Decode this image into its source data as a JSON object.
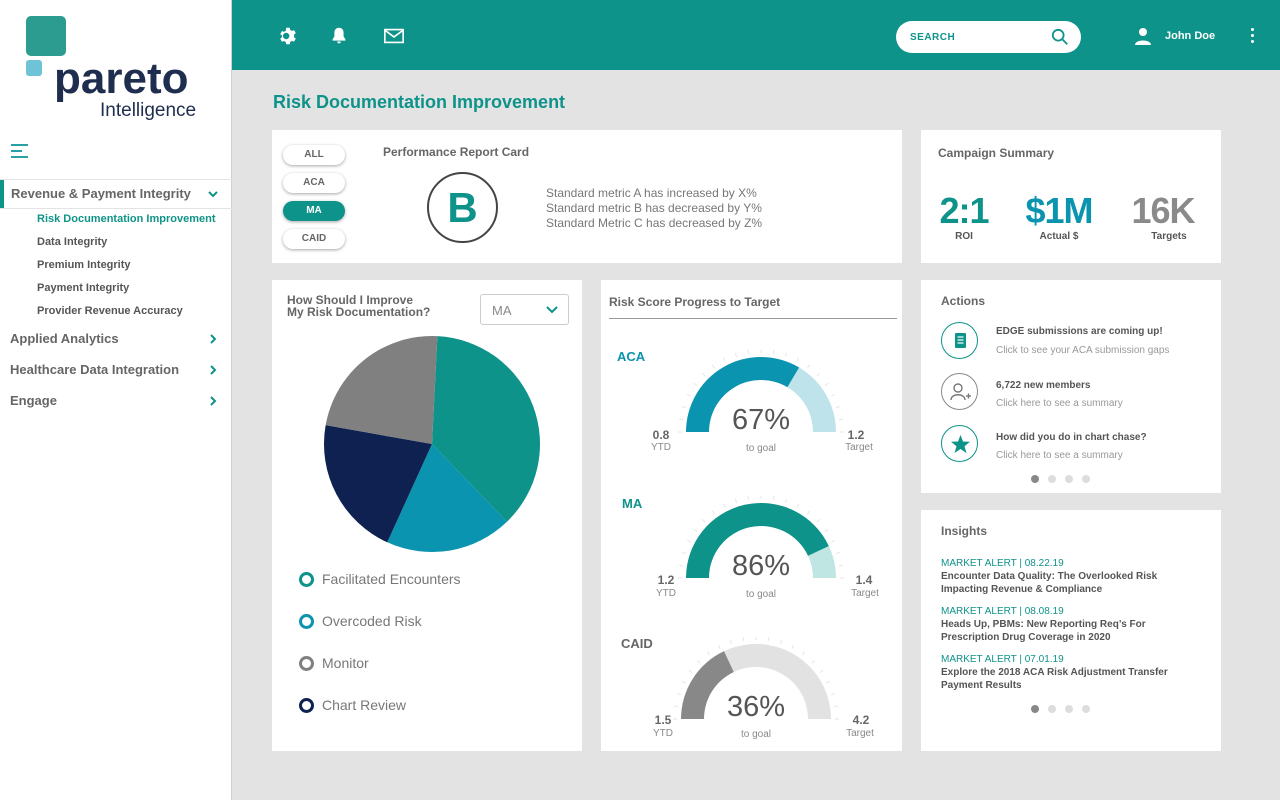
{
  "brand": {
    "name": "pareto",
    "sub": "Intelligence"
  },
  "header": {
    "search_placeholder": "SEARCH",
    "user_name": "John Doe"
  },
  "sidebar": {
    "sections": [
      {
        "label": "Revenue & Payment Integrity"
      },
      {
        "label": "Applied Analytics"
      },
      {
        "label": "Healthcare Data Integration"
      },
      {
        "label": "Engage"
      }
    ],
    "sub_items": [
      {
        "label": "Risk Documentation Improvement"
      },
      {
        "label": "Data Integrity"
      },
      {
        "label": "Premium Integrity"
      },
      {
        "label": "Payment Integrity"
      },
      {
        "label": "Provider Revenue Accuracy"
      }
    ]
  },
  "page": {
    "title": "Risk Documentation Improvement"
  },
  "report_card": {
    "filters": [
      "ALL",
      "ACA",
      "MA",
      "CAID"
    ],
    "active_filter": "MA",
    "title": "Performance Report Card",
    "grade": "B",
    "metrics": [
      "Standard metric A has increased by X%",
      "Standard metric B has decreased by Y%",
      "Standard Metric C has decreased by Z%"
    ]
  },
  "campaign": {
    "title": "Campaign Summary",
    "kpis": [
      {
        "value": "2:1",
        "label": "ROI",
        "color": "#0e938a"
      },
      {
        "value": "$1M",
        "label": "Actual $",
        "color": "#0a94b0"
      },
      {
        "value": "16K",
        "label": "Targets",
        "color": "#8a8a8a"
      }
    ]
  },
  "improve": {
    "title_line1": "How Should I Improve",
    "title_line2": "My Risk Documentation?",
    "select_value": "MA",
    "legend": [
      {
        "label": "Facilitated Encounters",
        "color": "#0e938a"
      },
      {
        "label": "Overcoded Risk",
        "color": "#0a94b0"
      },
      {
        "label": "Monitor",
        "color": "#808080"
      },
      {
        "label": "Chart Review",
        "color": "#0e2150"
      }
    ]
  },
  "chart_data": {
    "type": "pie",
    "slices": [
      {
        "label": "Facilitated Encounters",
        "value": 37,
        "color": "#0e938a"
      },
      {
        "label": "Overcoded Risk",
        "value": 19,
        "color": "#0a94b0"
      },
      {
        "label": "Chart Review",
        "value": 21,
        "color": "#0e2150"
      },
      {
        "label": "Monitor",
        "value": 23,
        "color": "#808080"
      }
    ]
  },
  "progress": {
    "title": "Risk Score Progress to Target",
    "ytd_label": "YTD",
    "target_label": "Target",
    "to_goal_label": "to goal",
    "gauges": [
      {
        "name": "ACA",
        "name_color": "#0a94b0",
        "ytd": "0.8",
        "target": "1.2",
        "pct": "67%",
        "fraction": 0.67,
        "fill": "#0a94b0",
        "rest": "#bfe3ea"
      },
      {
        "name": "MA",
        "name_color": "#0e938a",
        "ytd": "1.2",
        "target": "1.4",
        "pct": "86%",
        "fraction": 0.86,
        "fill": "#0e938a",
        "rest": "#bfe6e2"
      },
      {
        "name": "CAID",
        "name_color": "#666666",
        "ytd": "1.5",
        "target": "4.2",
        "pct": "36%",
        "fraction": 0.36,
        "fill": "#888888",
        "rest": "#e2e2e2"
      }
    ]
  },
  "actions": {
    "title": "Actions",
    "items": [
      {
        "icon": "receipt-icon",
        "title": "EDGE submissions are coming up!",
        "sub": "Click to see your ACA submission gaps"
      },
      {
        "icon": "add-user-icon",
        "title": "6,722 new members",
        "sub": "Click here to see a summary"
      },
      {
        "icon": "star-icon",
        "title": "How did you do in chart chase?",
        "sub": "Click here to see a summary"
      }
    ]
  },
  "insights": {
    "title": "Insights",
    "items": [
      {
        "alert": "MARKET ALERT | 08.22.19",
        "text": "Encounter Data Quality: The Overlooked Risk Impacting Revenue & Compliance"
      },
      {
        "alert": "MARKET ALERT | 08.08.19",
        "text": "Heads Up, PBMs: New Reporting Req’s For Prescription Drug Coverage in 2020"
      },
      {
        "alert": "MARKET ALERT | 07.01.19",
        "text": "Explore the 2018 ACA Risk Adjustment Transfer Payment Results"
      }
    ]
  }
}
